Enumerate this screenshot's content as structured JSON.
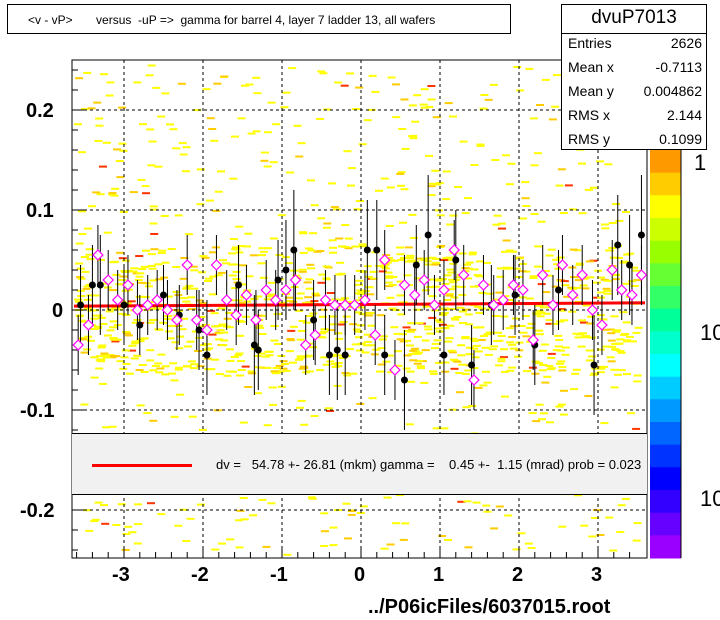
{
  "title": "<v - vP>       versus  -uP =>  gamma for barrel 4, layer 7 ladder 13, all wafers",
  "stats": {
    "name": "dvuP7013",
    "rows": [
      {
        "key": "Entries",
        "value": "2626"
      },
      {
        "key": "Mean x",
        "value": "-0.7113"
      },
      {
        "key": "Mean y",
        "value": "0.004862"
      },
      {
        "key": "RMS x",
        "value": "2.144"
      },
      {
        "key": "RMS y",
        "value": "0.1099"
      }
    ]
  },
  "fit_text": "dv =   54.78 +- 26.81 (mkm) gamma =    0.45 +-  1.15 (mrad) prob = 0.023",
  "footer": "../P06icFiles/6037015.root",
  "colors": {
    "fit": "#ff0000",
    "scatter": "#ffff00",
    "profile": "#000000",
    "marker": "#ff00ff"
  },
  "chart_data": {
    "type": "heatmap",
    "xlim": [
      -3.65,
      3.65
    ],
    "ylim": [
      -0.245,
      0.245
    ],
    "x_ticks": [
      -3,
      -2,
      -1,
      0,
      1,
      2,
      3
    ],
    "x_tick_labels": [
      "-3",
      "-2",
      "-1",
      "0",
      "1",
      "2",
      "3"
    ],
    "y_ticks": [
      -0.2,
      -0.1,
      0,
      0.1,
      0.2
    ],
    "y_tick_labels": [
      "-0.2",
      "-0.1",
      "0",
      "0.1",
      "0.2"
    ],
    "grid": true,
    "z_labels": [
      "1",
      "10",
      "10"
    ],
    "fit": {
      "slope": 0.00045,
      "intercept": 0.0055
    },
    "profile_open": [
      {
        "x": -3.58,
        "y": -0.035
      },
      {
        "x": -3.45,
        "y": -0.015
      },
      {
        "x": -3.33,
        "y": 0.055
      },
      {
        "x": -3.2,
        "y": 0.03
      },
      {
        "x": -3.08,
        "y": 0.01
      },
      {
        "x": -2.95,
        "y": 0.025
      },
      {
        "x": -2.83,
        "y": 0.0
      },
      {
        "x": -2.7,
        "y": 0.005
      },
      {
        "x": -2.58,
        "y": 0.01
      },
      {
        "x": -2.45,
        "y": 0.0
      },
      {
        "x": -2.33,
        "y": -0.01
      },
      {
        "x": -2.2,
        "y": 0.045
      },
      {
        "x": -2.08,
        "y": -0.01
      },
      {
        "x": -1.95,
        "y": -0.02
      },
      {
        "x": -1.83,
        "y": 0.045
      },
      {
        "x": -1.7,
        "y": 0.01
      },
      {
        "x": -1.58,
        "y": -0.005
      },
      {
        "x": -1.45,
        "y": 0.015
      },
      {
        "x": -1.33,
        "y": -0.01
      },
      {
        "x": -1.2,
        "y": 0.02
      },
      {
        "x": -1.08,
        "y": 0.01
      },
      {
        "x": -0.95,
        "y": 0.02
      },
      {
        "x": -0.83,
        "y": 0.03
      },
      {
        "x": -0.7,
        "y": -0.035
      },
      {
        "x": -0.58,
        "y": -0.025
      },
      {
        "x": -0.45,
        "y": 0.01
      },
      {
        "x": -0.33,
        "y": 0.005
      },
      {
        "x": -0.2,
        "y": 0.005
      },
      {
        "x": -0.08,
        "y": 0.005
      },
      {
        "x": 0.05,
        "y": 0.01
      },
      {
        "x": 0.18,
        "y": -0.025
      },
      {
        "x": 0.3,
        "y": 0.05
      },
      {
        "x": 0.43,
        "y": -0.06
      },
      {
        "x": 0.55,
        "y": 0.025
      },
      {
        "x": 0.68,
        "y": 0.015
      },
      {
        "x": 0.8,
        "y": 0.03
      },
      {
        "x": 0.93,
        "y": 0.005
      },
      {
        "x": 1.05,
        "y": 0.02
      },
      {
        "x": 1.18,
        "y": 0.06
      },
      {
        "x": 1.3,
        "y": 0.035
      },
      {
        "x": 1.43,
        "y": -0.07
      },
      {
        "x": 1.55,
        "y": 0.025
      },
      {
        "x": 1.68,
        "y": 0.005
      },
      {
        "x": 1.8,
        "y": 0.01
      },
      {
        "x": 1.93,
        "y": 0.025
      },
      {
        "x": 2.05,
        "y": 0.02
      },
      {
        "x": 2.18,
        "y": -0.03
      },
      {
        "x": 2.3,
        "y": 0.035
      },
      {
        "x": 2.43,
        "y": 0.005
      },
      {
        "x": 2.55,
        "y": 0.045
      },
      {
        "x": 2.68,
        "y": 0.015
      },
      {
        "x": 2.8,
        "y": 0.035
      },
      {
        "x": 2.93,
        "y": 0.0
      },
      {
        "x": 3.05,
        "y": -0.015
      },
      {
        "x": 3.18,
        "y": 0.04
      },
      {
        "x": 3.3,
        "y": 0.02
      },
      {
        "x": 3.43,
        "y": 0.015
      },
      {
        "x": 3.55,
        "y": 0.035
      }
    ],
    "profile_filled": [
      {
        "x": -3.55,
        "y": 0.005,
        "e": 0.04
      },
      {
        "x": -3.4,
        "y": 0.025,
        "e": 0.04
      },
      {
        "x": -3.3,
        "y": 0.025,
        "e": 0.05
      },
      {
        "x": -3.0,
        "y": 0.005,
        "e": 0.04
      },
      {
        "x": -2.8,
        "y": -0.015,
        "e": 0.03
      },
      {
        "x": -2.5,
        "y": 0.015,
        "e": 0.03
      },
      {
        "x": -2.3,
        "y": -0.005,
        "e": 0.03
      },
      {
        "x": -2.05,
        "y": -0.02,
        "e": 0.04
      },
      {
        "x": -1.95,
        "y": -0.045,
        "e": 0.04
      },
      {
        "x": -1.55,
        "y": 0.025,
        "e": 0.04
      },
      {
        "x": -1.35,
        "y": -0.035,
        "e": 0.05
      },
      {
        "x": -1.3,
        "y": -0.04,
        "e": 0.04
      },
      {
        "x": -1.05,
        "y": 0.03,
        "e": 0.04
      },
      {
        "x": -0.95,
        "y": 0.04,
        "e": 0.05
      },
      {
        "x": -0.85,
        "y": 0.06,
        "e": 0.06
      },
      {
        "x": -0.6,
        "y": -0.01,
        "e": 0.04
      },
      {
        "x": -0.4,
        "y": -0.045,
        "e": 0.04
      },
      {
        "x": -0.3,
        "y": -0.04,
        "e": 0.05
      },
      {
        "x": -0.2,
        "y": -0.045,
        "e": 0.04
      },
      {
        "x": 0.08,
        "y": 0.06,
        "e": 0.05
      },
      {
        "x": 0.2,
        "y": 0.06,
        "e": 0.05
      },
      {
        "x": 0.3,
        "y": -0.045,
        "e": 0.04
      },
      {
        "x": 0.55,
        "y": -0.07,
        "e": 0.05
      },
      {
        "x": 0.7,
        "y": 0.045,
        "e": 0.04
      },
      {
        "x": 0.85,
        "y": 0.075,
        "e": 0.06
      },
      {
        "x": 1.05,
        "y": -0.045,
        "e": 0.04
      },
      {
        "x": 1.2,
        "y": 0.05,
        "e": 0.05
      },
      {
        "x": 1.4,
        "y": -0.055,
        "e": 0.04
      },
      {
        "x": 1.65,
        "y": 0.005,
        "e": 0.04
      },
      {
        "x": 1.95,
        "y": 0.015,
        "e": 0.04
      },
      {
        "x": 2.2,
        "y": -0.035,
        "e": 0.04
      },
      {
        "x": 2.5,
        "y": 0.02,
        "e": 0.04
      },
      {
        "x": 2.95,
        "y": -0.055,
        "e": 0.05
      },
      {
        "x": 3.25,
        "y": 0.065,
        "e": 0.05
      },
      {
        "x": 3.4,
        "y": 0.045,
        "e": 0.05
      },
      {
        "x": 3.55,
        "y": 0.075,
        "e": 0.06
      }
    ]
  }
}
